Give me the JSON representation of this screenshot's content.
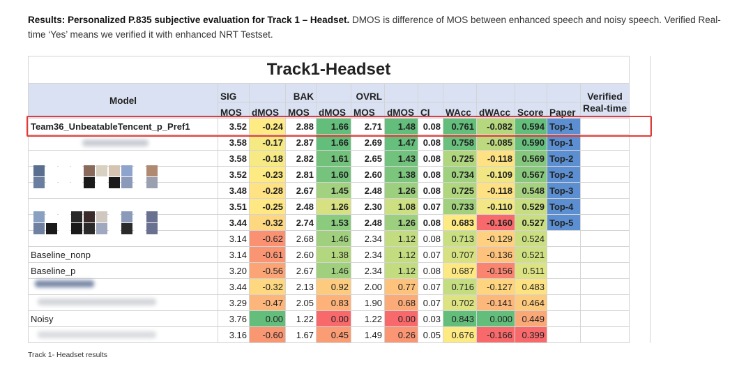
{
  "intro": {
    "bold": "Results: Personalized P.835 subjective evaluation for Track 1 – Headset.",
    "text": " DMOS is difference of MOS between enhanced speech and noisy speech. Verified Real-time ‘Yes’ means we verified it with enhanced NRT Testset."
  },
  "sheet_title": "Track1-Headset",
  "headers": {
    "model": "Model",
    "sig": "SIG",
    "bak": "BAK",
    "ovrl": "OVRL",
    "verified": "Verified",
    "realtime": "Real-time",
    "cols": [
      "MOS",
      "dMOS",
      "MOS",
      "dMOS",
      "MOS",
      "dMOS",
      "CI",
      "WAcc",
      "dWAcc",
      "Score",
      "Paper"
    ]
  },
  "colors": {
    "highlight": "#e53935",
    "header_bg": "#d9e1f2",
    "paper_bg": "#5b8fd1",
    "paper_light": "#8eb4e3"
  },
  "rows": [
    {
      "model": "Team36_UnbeatableTencent_p_Pref1",
      "bold": true,
      "vals": [
        "3.52",
        "-0.24",
        "2.88",
        "1.66",
        "2.71",
        "1.48",
        "0.08",
        "0.761",
        "-0.082",
        "0.594"
      ],
      "paper": "Top-1",
      "bg": [
        "",
        "#ffeb84",
        "",
        "#63be7b",
        "",
        "#63be7b",
        "",
        "#63be7b",
        "#b5d77e",
        "#63be7b"
      ]
    },
    {
      "model": "",
      "bold": true,
      "vals": [
        "3.58",
        "-0.17",
        "2.87",
        "1.66",
        "2.69",
        "1.47",
        "0.08",
        "0.758",
        "-0.085",
        "0.590"
      ],
      "paper": "Top-1",
      "bg": [
        "",
        "#f5e984",
        "",
        "#63be7b",
        "",
        "#66bf7c",
        "",
        "#6ac07c",
        "#bcd97f",
        "#66bf7c"
      ]
    },
    {
      "model": "",
      "bold": true,
      "vals": [
        "3.58",
        "-0.18",
        "2.82",
        "1.61",
        "2.65",
        "1.43",
        "0.08",
        "0.725",
        "-0.118",
        "0.569"
      ],
      "paper": "Top-2",
      "bg": [
        "",
        "#f7e983",
        "",
        "#72c27c",
        "",
        "#70c27c",
        "",
        "#b0d67e",
        "#fee182",
        "#85c77d"
      ]
    },
    {
      "model": "",
      "bold": true,
      "vals": [
        "3.52",
        "-0.23",
        "2.81",
        "1.60",
        "2.60",
        "1.38",
        "0.08",
        "0.734",
        "-0.109",
        "0.567"
      ],
      "paper": "Top-2",
      "bg": [
        "",
        "#feea83",
        "",
        "#75c37c",
        "",
        "#7cc57d",
        "",
        "#a0d17e",
        "#f0e784",
        "#88c87d"
      ]
    },
    {
      "model": "",
      "bold": true,
      "vals": [
        "3.48",
        "-0.28",
        "2.67",
        "1.45",
        "2.48",
        "1.26",
        "0.08",
        "0.725",
        "-0.118",
        "0.548"
      ],
      "paper": "Top-3",
      "bg": [
        "",
        "#ffe283",
        "",
        "#a2d17f",
        "",
        "#9ccf7e",
        "",
        "#b0d67e",
        "#fee182",
        "#a6d27f"
      ]
    },
    {
      "model": "",
      "bold": true,
      "vals": [
        "3.51",
        "-0.25",
        "2.48",
        "1.26",
        "2.30",
        "1.08",
        "0.07",
        "0.733",
        "-0.110",
        "0.529"
      ],
      "paper": "Top-4",
      "bg": [
        "",
        "#ffe884",
        "",
        "#d8e182",
        "",
        "#cde081",
        "",
        "#a2d17e",
        "#f2e784",
        "#c6dd80"
      ]
    },
    {
      "model": "",
      "bold": true,
      "vals": [
        "3.44",
        "-0.32",
        "2.74",
        "1.53",
        "2.48",
        "1.26",
        "0.08",
        "0.683",
        "-0.160",
        "0.527"
      ],
      "paper": "Top-5",
      "bg": [
        "",
        "#fed880",
        "",
        "#8acb7e",
        "",
        "#9ccf7e",
        "",
        "#feea83",
        "#f8696b",
        "#c9de81"
      ]
    },
    {
      "model": "",
      "bold": false,
      "vals": [
        "3.14",
        "-0.62",
        "2.68",
        "1.46",
        "2.34",
        "1.12",
        "0.08",
        "0.713",
        "-0.129",
        "0.524"
      ],
      "paper": "",
      "bg": [
        "",
        "#fa9272",
        "",
        "#a0d07e",
        "",
        "#c3dc80",
        "",
        "#cadf81",
        "#fed07f",
        "#cbdf81"
      ]
    },
    {
      "model": "Baseline_nonp",
      "bold": false,
      "vals": [
        "3.14",
        "-0.61",
        "2.60",
        "1.38",
        "2.34",
        "1.12",
        "0.07",
        "0.707",
        "-0.136",
        "0.521"
      ],
      "paper": "",
      "bg": [
        "",
        "#fa9573",
        "",
        "#b3d77f",
        "",
        "#c3dc80",
        "",
        "#d6e282",
        "#fdc37c",
        "#cfe081"
      ]
    },
    {
      "model": "Baseline_p",
      "bold": false,
      "vals": [
        "3.20",
        "-0.56",
        "2.67",
        "1.46",
        "2.34",
        "1.12",
        "0.08",
        "0.687",
        "-0.156",
        "0.511"
      ],
      "paper": "",
      "bg": [
        "",
        "#fba476",
        "",
        "#a0d07e",
        "",
        "#c3dc80",
        "",
        "#fde983",
        "#f98570",
        "#dce382"
      ]
    },
    {
      "model": "",
      "bold": false,
      "vals": [
        "3.44",
        "-0.32",
        "2.13",
        "0.92",
        "2.00",
        "0.77",
        "0.07",
        "0.716",
        "-0.127",
        "0.483"
      ],
      "paper": "",
      "bg": [
        "",
        "#fed880",
        "",
        "#fdcb7e",
        "",
        "#fdc37c",
        "",
        "#c4dd80",
        "#fed47f",
        "#fde282"
      ]
    },
    {
      "model": "",
      "bold": false,
      "vals": [
        "3.29",
        "-0.47",
        "2.05",
        "0.83",
        "1.90",
        "0.68",
        "0.07",
        "0.702",
        "-0.141",
        "0.464"
      ],
      "paper": "",
      "bg": [
        "",
        "#fcb57a",
        "",
        "#fcb279",
        "",
        "#fbab78",
        "",
        "#ddE382",
        "#fcb77a",
        "#fdcb7e"
      ]
    },
    {
      "model": "Noisy",
      "bold": false,
      "vals": [
        "3.76",
        "0.00",
        "1.22",
        "0.00",
        "1.22",
        "0.00",
        "0.03",
        "0.843",
        "0.000",
        "0.449"
      ],
      "paper": "",
      "bg": [
        "",
        "#63be7b",
        "",
        "#f8696b",
        "",
        "#f8696b",
        "",
        "#63be7b",
        "#63be7b",
        "#fba877"
      ]
    },
    {
      "model": "",
      "bold": false,
      "vals": [
        "3.16",
        "-0.60",
        "1.67",
        "0.45",
        "1.49",
        "0.26",
        "0.05",
        "0.676",
        "-0.166",
        "0.399"
      ],
      "paper": "",
      "bg": [
        "",
        "#fa9773",
        "",
        "#fa9c74",
        "",
        "#fa9674",
        "",
        "#feea83",
        "#f8696b",
        "#f8696b"
      ]
    }
  ],
  "caption": "Track 1- Headset results"
}
